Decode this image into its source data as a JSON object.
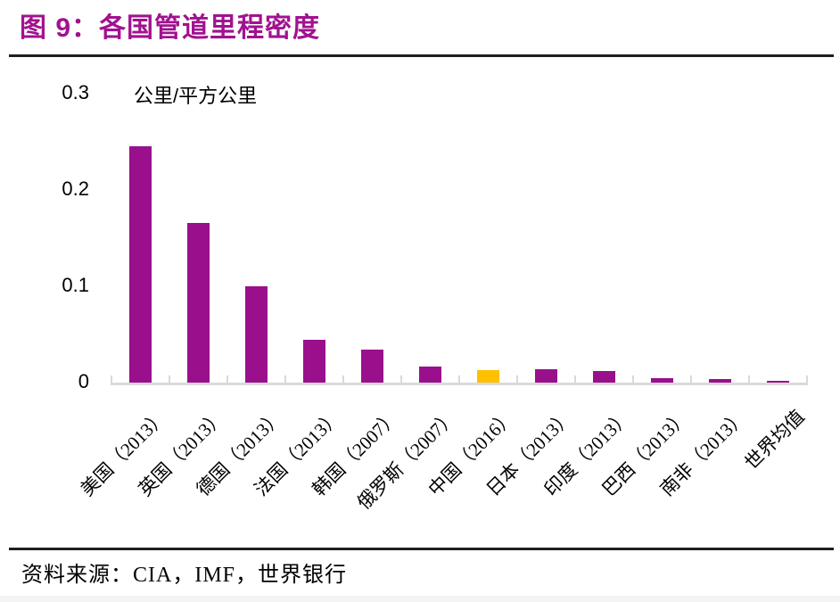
{
  "page": {
    "colors": {
      "title_text": "#A1128F",
      "bar_purple": "#9A108C",
      "bar_highlight_yellow": "#FFC000",
      "axis_gray": "#D9D9D9",
      "divider_dark": "#1F1F1F"
    }
  },
  "chart_data": {
    "type": "bar",
    "title": "图 9：各国管道里程密度",
    "unit_label": "公里/平方公里",
    "categories": [
      "美国（2013）",
      "英国（2013）",
      "德国（2013）",
      "法国（2013）",
      "韩国（2007）",
      "俄罗斯（2007）",
      "中国（2016）",
      "日本（2013）",
      "印度（2013）",
      "巴西（2013）",
      "南非（2013）",
      "世界均值"
    ],
    "values": [
      0.245,
      0.166,
      0.1,
      0.044,
      0.034,
      0.017,
      0.013,
      0.014,
      0.012,
      0.005,
      0.004,
      0.002
    ],
    "highlight_index": 6,
    "highlight_category": "中国（2016）",
    "ytick_labels": [
      "0",
      "0.1",
      "0.2",
      "0.3"
    ],
    "ytick_values": [
      0,
      0.1,
      0.2,
      0.3
    ],
    "ylim": [
      0,
      0.3
    ],
    "grid": false,
    "legend": "none",
    "xlabel": "",
    "ylabel": "公里/平方公里",
    "source": "资料来源：CIA，IMF，世界银行"
  }
}
